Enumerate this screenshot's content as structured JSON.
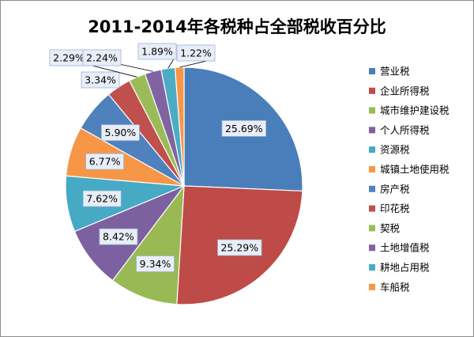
{
  "chart_data": {
    "type": "pie",
    "title": "2011-2014年各税种占全部税收百分比",
    "legend_position": "right",
    "start_angle_deg": 0,
    "direction": "clockwise",
    "slices": [
      {
        "name": "营业税",
        "value": 25.69,
        "label": "25.69%",
        "color": "#4a7ebb"
      },
      {
        "name": "企业所得税",
        "value": 25.29,
        "label": "25.29%",
        "color": "#be4b48"
      },
      {
        "name": "城市维护建设税",
        "value": 9.34,
        "label": "9.34%",
        "color": "#98b954"
      },
      {
        "name": "个人所得税",
        "value": 8.42,
        "label": "8.42%",
        "color": "#7d60a0"
      },
      {
        "name": "资源税",
        "value": 7.62,
        "label": "7.62%",
        "color": "#46aac5"
      },
      {
        "name": "城镇土地使用税",
        "value": 6.77,
        "label": "6.77%",
        "color": "#f79646"
      },
      {
        "name": "房产税",
        "value": 5.9,
        "label": "5.90%",
        "color": "#4f81bd"
      },
      {
        "name": "印花税",
        "value": 3.34,
        "label": "3.34%",
        "color": "#c0504d"
      },
      {
        "name": "契税",
        "value": 2.29,
        "label": "2.29%",
        "color": "#9bbb59"
      },
      {
        "name": "土地增值税",
        "value": 2.24,
        "label": "2.24%",
        "color": "#8064a2"
      },
      {
        "name": "耕地占用税",
        "value": 1.89,
        "label": "1.89%",
        "color": "#4bacc6"
      },
      {
        "name": "车船税",
        "value": 1.22,
        "label": "1.22%",
        "color": "#f79646"
      }
    ]
  }
}
